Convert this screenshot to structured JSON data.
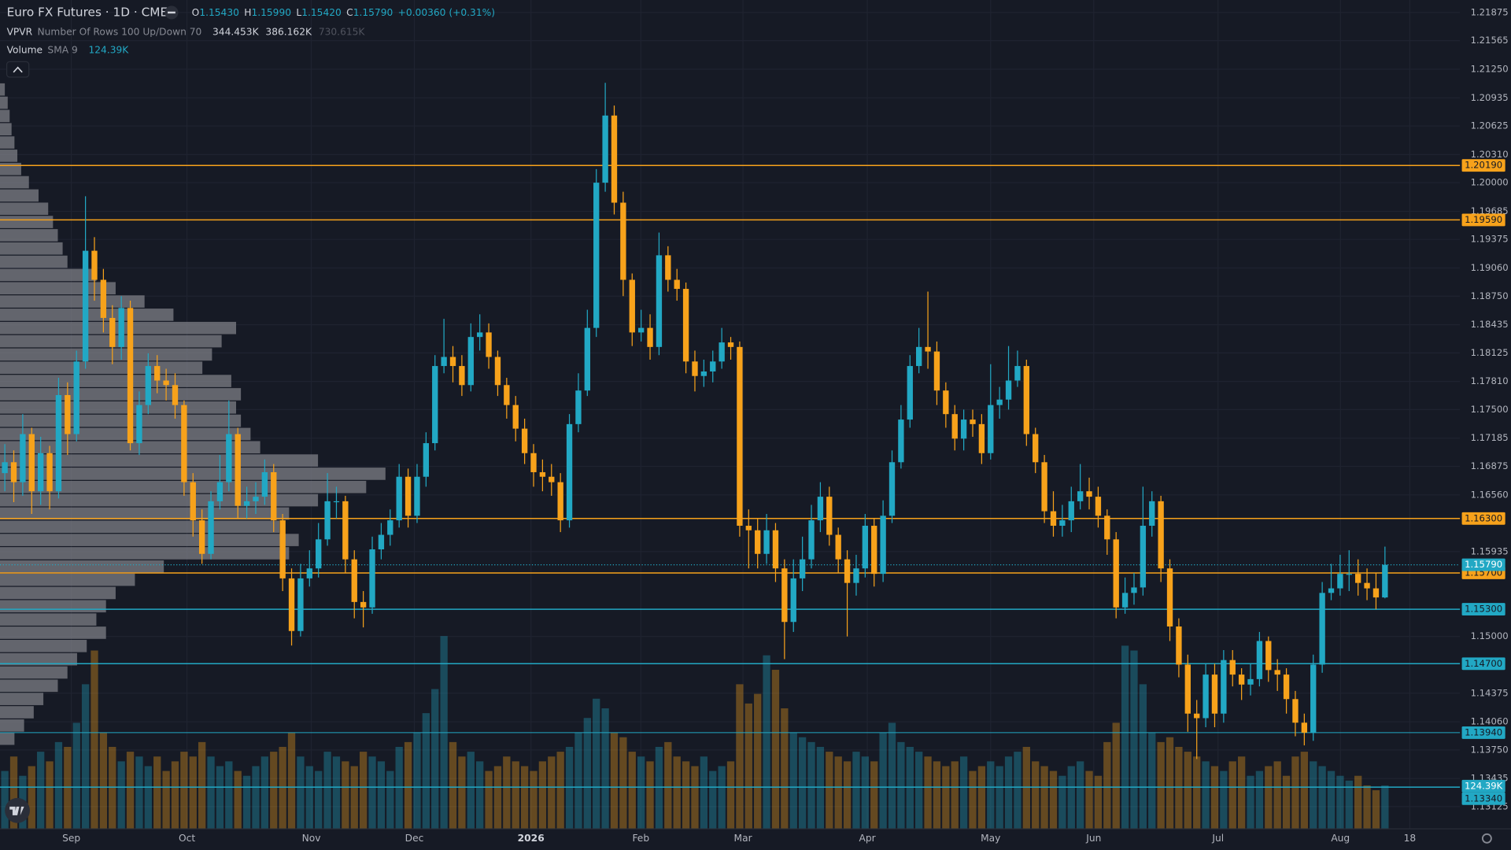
{
  "chart_data": {
    "type": "candlestick",
    "header": {
      "symbol": "Euro FX Futures · 1D · CME",
      "ohlc": [
        {
          "key": "O",
          "value": "1.15430"
        },
        {
          "key": "H",
          "value": "1.15990"
        },
        {
          "key": "L",
          "value": "1.15420"
        },
        {
          "key": "C",
          "value": "1.15790"
        }
      ],
      "change": "+0.00360 (+0.31%)",
      "vpvr": {
        "name": "VPVR",
        "settings": "Number Of Rows 100 Up/Down 70",
        "up": "344.453K",
        "down": "386.162K",
        "total": "730.615K"
      },
      "volume": {
        "name": "Volume",
        "settings": "SMA 9",
        "value": "124.39K"
      }
    },
    "up_color": "#22a8c4",
    "down_color": "#f7a21b",
    "grid": true,
    "ylim": [
      1.13125,
      1.21875
    ],
    "yticks": [
      {
        "value": 1.21875,
        "label": "1.21875"
      },
      {
        "value": 1.21565,
        "label": "1.21565"
      },
      {
        "value": 1.2125,
        "label": "1.21250"
      },
      {
        "value": 1.20935,
        "label": "1.20935"
      },
      {
        "value": 1.20625,
        "label": "1.20625"
      },
      {
        "value": 1.2031,
        "label": "1.20310"
      },
      {
        "value": 1.2,
        "label": "1.20000"
      },
      {
        "value": 1.19685,
        "label": "1.19685"
      },
      {
        "value": 1.19375,
        "label": "1.19375"
      },
      {
        "value": 1.1906,
        "label": "1.19060"
      },
      {
        "value": 1.1875,
        "label": "1.18750"
      },
      {
        "value": 1.18435,
        "label": "1.18435"
      },
      {
        "value": 1.18125,
        "label": "1.18125"
      },
      {
        "value": 1.1781,
        "label": "1.17810"
      },
      {
        "value": 1.175,
        "label": "1.17500"
      },
      {
        "value": 1.17185,
        "label": "1.17185"
      },
      {
        "value": 1.16875,
        "label": "1.16875"
      },
      {
        "value": 1.1656,
        "label": "1.16560"
      },
      {
        "value": 1.15935,
        "label": "1.15935"
      },
      {
        "value": 1.15,
        "label": "1.15000"
      },
      {
        "value": 1.14375,
        "label": "1.14375"
      },
      {
        "value": 1.1406,
        "label": "1.14060"
      },
      {
        "value": 1.1375,
        "label": "1.13750"
      },
      {
        "value": 1.13435,
        "label": "1.13435"
      },
      {
        "value": 1.13125,
        "label": "1.13125"
      }
    ],
    "time_labels": [
      "Sep",
      "Oct",
      "Nov",
      "Dec",
      "2026",
      "Feb",
      "Mar",
      "Apr",
      "May",
      "Jun",
      "Jul",
      "Aug",
      "18"
    ],
    "levels": [
      {
        "value": 1.2019,
        "label": "1.20190",
        "color": "#f7a21b"
      },
      {
        "value": 1.1959,
        "label": "1.19590",
        "color": "#f7a21b"
      },
      {
        "value": 1.163,
        "label": "1.16300",
        "color": "#f7a21b"
      },
      {
        "value": 1.157,
        "label": "1.15700",
        "color": "#f7a21b"
      },
      {
        "value": 1.153,
        "label": "1.15300",
        "color": "#22a8c4"
      },
      {
        "value": 1.147,
        "label": "1.14700",
        "color": "#22a8c4"
      },
      {
        "value": 1.1394,
        "label": "1.13940",
        "color": "#22a8c4"
      },
      {
        "value": 1.1334,
        "label": "1.13340",
        "color": "#22a8c4"
      }
    ],
    "last_price": {
      "value": 1.1579,
      "label": "1.15790"
    },
    "volume_sma_label": "124.39K",
    "ohlc": [
      [
        1.168,
        1.1712,
        1.166,
        1.1692
      ],
      [
        1.1692,
        1.1705,
        1.1648,
        1.167
      ],
      [
        1.167,
        1.1745,
        1.1655,
        1.1723
      ],
      [
        1.1723,
        1.173,
        1.1635,
        1.166
      ],
      [
        1.166,
        1.172,
        1.1645,
        1.1702
      ],
      [
        1.1702,
        1.171,
        1.164,
        1.166
      ],
      [
        1.166,
        1.1785,
        1.1652,
        1.1766
      ],
      [
        1.1766,
        1.178,
        1.17,
        1.1723
      ],
      [
        1.1723,
        1.1815,
        1.1715,
        1.1803
      ],
      [
        1.1803,
        1.1985,
        1.1795,
        1.1925
      ],
      [
        1.1925,
        1.194,
        1.187,
        1.1893
      ],
      [
        1.1893,
        1.1905,
        1.1835,
        1.1851
      ],
      [
        1.1851,
        1.1865,
        1.18,
        1.1819
      ],
      [
        1.1819,
        1.1875,
        1.1805,
        1.1862
      ],
      [
        1.1862,
        1.187,
        1.1705,
        1.1713
      ],
      [
        1.1713,
        1.177,
        1.17,
        1.1755
      ],
      [
        1.1755,
        1.1812,
        1.1745,
        1.1798
      ],
      [
        1.1798,
        1.181,
        1.1768,
        1.1782
      ],
      [
        1.1782,
        1.1795,
        1.176,
        1.1777
      ],
      [
        1.1777,
        1.179,
        1.174,
        1.1755
      ],
      [
        1.1755,
        1.176,
        1.1655,
        1.167
      ],
      [
        1.167,
        1.168,
        1.161,
        1.1628
      ],
      [
        1.1628,
        1.164,
        1.158,
        1.1591
      ],
      [
        1.1591,
        1.166,
        1.1585,
        1.1649
      ],
      [
        1.1649,
        1.17,
        1.164,
        1.167
      ],
      [
        1.167,
        1.176,
        1.166,
        1.1723
      ],
      [
        1.1723,
        1.173,
        1.163,
        1.1644
      ],
      [
        1.1644,
        1.1665,
        1.163,
        1.1649
      ],
      [
        1.1649,
        1.167,
        1.1635,
        1.1654
      ],
      [
        1.1654,
        1.1695,
        1.1645,
        1.1681
      ],
      [
        1.1681,
        1.169,
        1.1615,
        1.1628
      ],
      [
        1.1628,
        1.1635,
        1.155,
        1.1564
      ],
      [
        1.1564,
        1.1575,
        1.149,
        1.1506
      ],
      [
        1.1506,
        1.158,
        1.15,
        1.1564
      ],
      [
        1.1564,
        1.1595,
        1.1555,
        1.1575
      ],
      [
        1.1575,
        1.1625,
        1.1565,
        1.1607
      ],
      [
        1.1607,
        1.168,
        1.16,
        1.1649
      ],
      [
        1.1649,
        1.1665,
        1.163,
        1.1649
      ],
      [
        1.1649,
        1.1655,
        1.157,
        1.1585
      ],
      [
        1.1585,
        1.1595,
        1.152,
        1.1538
      ],
      [
        1.1538,
        1.155,
        1.151,
        1.1532
      ],
      [
        1.1532,
        1.161,
        1.1525,
        1.1596
      ],
      [
        1.1596,
        1.1625,
        1.1585,
        1.1612
      ],
      [
        1.1612,
        1.164,
        1.16,
        1.1628
      ],
      [
        1.1628,
        1.169,
        1.162,
        1.1676
      ],
      [
        1.1676,
        1.1685,
        1.162,
        1.1633
      ],
      [
        1.1633,
        1.169,
        1.1625,
        1.1676
      ],
      [
        1.1676,
        1.1725,
        1.1665,
        1.1713
      ],
      [
        1.1713,
        1.181,
        1.1705,
        1.1798
      ],
      [
        1.1798,
        1.185,
        1.179,
        1.1808
      ],
      [
        1.1808,
        1.182,
        1.178,
        1.1798
      ],
      [
        1.1798,
        1.181,
        1.1765,
        1.1777
      ],
      [
        1.1777,
        1.1845,
        1.177,
        1.183
      ],
      [
        1.183,
        1.1855,
        1.1815,
        1.1835
      ],
      [
        1.1835,
        1.1845,
        1.1795,
        1.1808
      ],
      [
        1.1808,
        1.1815,
        1.1765,
        1.1777
      ],
      [
        1.1777,
        1.1785,
        1.174,
        1.1755
      ],
      [
        1.1755,
        1.1765,
        1.1715,
        1.1729
      ],
      [
        1.1729,
        1.174,
        1.169,
        1.1702
      ],
      [
        1.1702,
        1.1712,
        1.1665,
        1.1681
      ],
      [
        1.1681,
        1.1695,
        1.166,
        1.1676
      ],
      [
        1.1676,
        1.169,
        1.1655,
        1.167
      ],
      [
        1.167,
        1.168,
        1.1615,
        1.1628
      ],
      [
        1.1628,
        1.1745,
        1.162,
        1.1734
      ],
      [
        1.1734,
        1.179,
        1.1725,
        1.1771
      ],
      [
        1.1771,
        1.186,
        1.1765,
        1.184
      ],
      [
        1.184,
        1.2015,
        1.183,
        1.2
      ],
      [
        1.2,
        1.211,
        1.199,
        1.2074
      ],
      [
        1.2074,
        1.2085,
        1.1965,
        1.1978
      ],
      [
        1.1978,
        1.199,
        1.1875,
        1.1893
      ],
      [
        1.1893,
        1.19,
        1.182,
        1.1835
      ],
      [
        1.1835,
        1.186,
        1.1825,
        1.184
      ],
      [
        1.184,
        1.1855,
        1.1805,
        1.1819
      ],
      [
        1.1819,
        1.1945,
        1.181,
        1.192
      ],
      [
        1.192,
        1.193,
        1.188,
        1.1893
      ],
      [
        1.1893,
        1.1905,
        1.187,
        1.1883
      ],
      [
        1.1883,
        1.189,
        1.179,
        1.1803
      ],
      [
        1.1803,
        1.1815,
        1.177,
        1.1787
      ],
      [
        1.1787,
        1.1805,
        1.1775,
        1.1792
      ],
      [
        1.1792,
        1.1815,
        1.178,
        1.1803
      ],
      [
        1.1803,
        1.184,
        1.1795,
        1.1824
      ],
      [
        1.1824,
        1.183,
        1.1805,
        1.1819
      ],
      [
        1.1819,
        1.1825,
        1.161,
        1.1622
      ],
      [
        1.1622,
        1.164,
        1.1575,
        1.1617
      ],
      [
        1.1617,
        1.163,
        1.1575,
        1.1591
      ],
      [
        1.1591,
        1.1635,
        1.158,
        1.1617
      ],
      [
        1.1617,
        1.1625,
        1.156,
        1.1575
      ],
      [
        1.1575,
        1.1585,
        1.1475,
        1.1516
      ],
      [
        1.1516,
        1.1585,
        1.1505,
        1.1564
      ],
      [
        1.1564,
        1.161,
        1.155,
        1.1585
      ],
      [
        1.1585,
        1.1645,
        1.1575,
        1.1628
      ],
      [
        1.1628,
        1.167,
        1.1615,
        1.1654
      ],
      [
        1.1654,
        1.1665,
        1.16,
        1.1612
      ],
      [
        1.1612,
        1.162,
        1.157,
        1.1585
      ],
      [
        1.1585,
        1.1595,
        1.15,
        1.1559
      ],
      [
        1.1559,
        1.159,
        1.1545,
        1.1575
      ],
      [
        1.1575,
        1.1635,
        1.1565,
        1.1622
      ],
      [
        1.1622,
        1.163,
        1.1555,
        1.1569
      ],
      [
        1.1569,
        1.165,
        1.156,
        1.1633
      ],
      [
        1.1633,
        1.1705,
        1.1625,
        1.1692
      ],
      [
        1.1692,
        1.1755,
        1.1685,
        1.1739
      ],
      [
        1.1739,
        1.181,
        1.173,
        1.1798
      ],
      [
        1.1798,
        1.184,
        1.179,
        1.1819
      ],
      [
        1.1819,
        1.188,
        1.1795,
        1.1814
      ],
      [
        1.1814,
        1.1825,
        1.1755,
        1.1771
      ],
      [
        1.1771,
        1.178,
        1.173,
        1.1745
      ],
      [
        1.1745,
        1.1755,
        1.1705,
        1.1718
      ],
      [
        1.1718,
        1.175,
        1.1705,
        1.1739
      ],
      [
        1.1739,
        1.175,
        1.172,
        1.1734
      ],
      [
        1.1734,
        1.1745,
        1.169,
        1.1702
      ],
      [
        1.1702,
        1.18,
        1.1695,
        1.1755
      ],
      [
        1.1755,
        1.1775,
        1.174,
        1.1761
      ],
      [
        1.1761,
        1.182,
        1.175,
        1.1782
      ],
      [
        1.1782,
        1.1815,
        1.1775,
        1.1798
      ],
      [
        1.1798,
        1.1805,
        1.171,
        1.1723
      ],
      [
        1.1723,
        1.173,
        1.168,
        1.1692
      ],
      [
        1.1692,
        1.17,
        1.1625,
        1.1638
      ],
      [
        1.1638,
        1.166,
        1.161,
        1.1622
      ],
      [
        1.1622,
        1.1645,
        1.161,
        1.1628
      ],
      [
        1.1628,
        1.1665,
        1.1615,
        1.1649
      ],
      [
        1.1649,
        1.169,
        1.164,
        1.166
      ],
      [
        1.166,
        1.1675,
        1.164,
        1.1654
      ],
      [
        1.1654,
        1.1665,
        1.162,
        1.1633
      ],
      [
        1.1633,
        1.164,
        1.159,
        1.1607
      ],
      [
        1.1607,
        1.1615,
        1.152,
        1.1532
      ],
      [
        1.1532,
        1.1565,
        1.1525,
        1.1548
      ],
      [
        1.1548,
        1.157,
        1.1535,
        1.1554
      ],
      [
        1.1554,
        1.1665,
        1.1545,
        1.1622
      ],
      [
        1.1622,
        1.166,
        1.161,
        1.1649
      ],
      [
        1.1649,
        1.1655,
        1.156,
        1.1575
      ],
      [
        1.1575,
        1.1585,
        1.1495,
        1.1511
      ],
      [
        1.1511,
        1.152,
        1.1455,
        1.1469
      ],
      [
        1.1469,
        1.148,
        1.1395,
        1.1415
      ],
      [
        1.1415,
        1.143,
        1.1365,
        1.141
      ],
      [
        1.141,
        1.147,
        1.14,
        1.1458
      ],
      [
        1.1458,
        1.147,
        1.14,
        1.1415
      ],
      [
        1.1415,
        1.1485,
        1.1405,
        1.1474
      ],
      [
        1.1474,
        1.1485,
        1.1445,
        1.1458
      ],
      [
        1.1458,
        1.1465,
        1.143,
        1.1447
      ],
      [
        1.1447,
        1.147,
        1.1435,
        1.1453
      ],
      [
        1.1453,
        1.1505,
        1.1445,
        1.1495
      ],
      [
        1.1495,
        1.15,
        1.145,
        1.1463
      ],
      [
        1.1463,
        1.1475,
        1.144,
        1.1458
      ],
      [
        1.1458,
        1.1465,
        1.1415,
        1.1431
      ],
      [
        1.1431,
        1.144,
        1.139,
        1.1405
      ],
      [
        1.1405,
        1.1415,
        1.138,
        1.1394
      ],
      [
        1.1394,
        1.148,
        1.1385,
        1.1469
      ],
      [
        1.1469,
        1.156,
        1.146,
        1.1548
      ],
      [
        1.1548,
        1.158,
        1.154,
        1.1553
      ],
      [
        1.1553,
        1.159,
        1.1545,
        1.1569
      ],
      [
        1.1569,
        1.1595,
        1.155,
        1.1569
      ],
      [
        1.1569,
        1.1585,
        1.1545,
        1.1559
      ],
      [
        1.1559,
        1.1575,
        1.154,
        1.1553
      ],
      [
        1.1553,
        1.157,
        1.153,
        1.1543
      ],
      [
        1.1543,
        1.1599,
        1.1542,
        1.1579
      ]
    ],
    "volume": [
      120,
      150,
      110,
      130,
      160,
      140,
      180,
      170,
      220,
      300,
      370,
      200,
      170,
      140,
      160,
      150,
      130,
      150,
      120,
      140,
      160,
      150,
      180,
      150,
      130,
      140,
      120,
      110,
      130,
      150,
      160,
      170,
      200,
      150,
      130,
      120,
      160,
      150,
      140,
      130,
      160,
      150,
      140,
      120,
      170,
      180,
      200,
      240,
      290,
      400,
      180,
      150,
      160,
      140,
      120,
      130,
      150,
      140,
      130,
      120,
      140,
      150,
      160,
      170,
      200,
      230,
      270,
      250,
      200,
      190,
      160,
      150,
      140,
      170,
      180,
      150,
      140,
      130,
      150,
      120,
      130,
      140,
      300,
      260,
      280,
      360,
      330,
      250,
      200,
      190,
      180,
      170,
      160,
      150,
      140,
      160,
      150,
      140,
      200,
      220,
      180,
      170,
      160,
      150,
      140,
      130,
      140,
      150,
      120,
      130,
      140,
      130,
      150,
      160,
      170,
      140,
      130,
      120,
      110,
      130,
      140,
      120,
      110,
      180,
      220,
      380,
      370,
      300,
      200,
      180,
      190,
      170,
      160,
      150,
      140,
      130,
      120,
      140,
      150,
      110,
      120,
      130,
      140,
      110,
      150,
      160,
      140,
      130,
      120,
      110,
      100,
      110,
      90,
      80,
      90
    ],
    "vpvr": {
      "range": [
        1.138,
        1.211
      ],
      "values": [
        5,
        8,
        10,
        12,
        15,
        18,
        22,
        30,
        40,
        50,
        55,
        60,
        65,
        70,
        100,
        120,
        150,
        180,
        245,
        230,
        220,
        210,
        240,
        250,
        245,
        250,
        260,
        270,
        330,
        400,
        380,
        330,
        300,
        290,
        310,
        300,
        170,
        140,
        120,
        110,
        100,
        110,
        90,
        80,
        70,
        60,
        45,
        35,
        25,
        15
      ]
    }
  }
}
